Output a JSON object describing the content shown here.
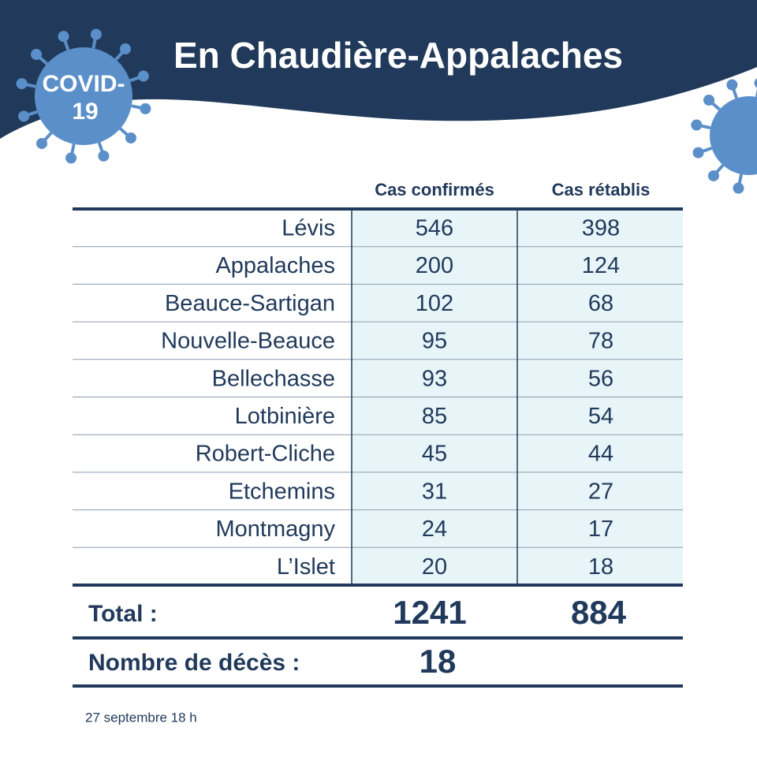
{
  "header": {
    "title": "En Chaudière-Appalaches",
    "badge": [
      "COVID-",
      "19"
    ]
  },
  "table": {
    "columns": [
      "Cas confirmés",
      "Cas rétablis"
    ],
    "rows": [
      [
        "Lévis",
        546,
        398
      ],
      [
        "Appalaches",
        200,
        124
      ],
      [
        "Beauce-Sartigan",
        102,
        68
      ],
      [
        "Nouvelle-Beauce",
        95,
        78
      ],
      [
        "Bellechasse",
        93,
        56
      ],
      [
        "Lotbinière",
        85,
        54
      ],
      [
        "Robert-Cliche",
        45,
        44
      ],
      [
        "Etchemins",
        31,
        27
      ],
      [
        "Montmagny",
        24,
        17
      ],
      [
        "L’Islet",
        20,
        18
      ]
    ],
    "total": [
      "Total :",
      1241,
      884
    ],
    "deaths": [
      "Nombre de décès :",
      18
    ]
  },
  "footer": {
    "date": "27 septembre 18 h"
  }
}
